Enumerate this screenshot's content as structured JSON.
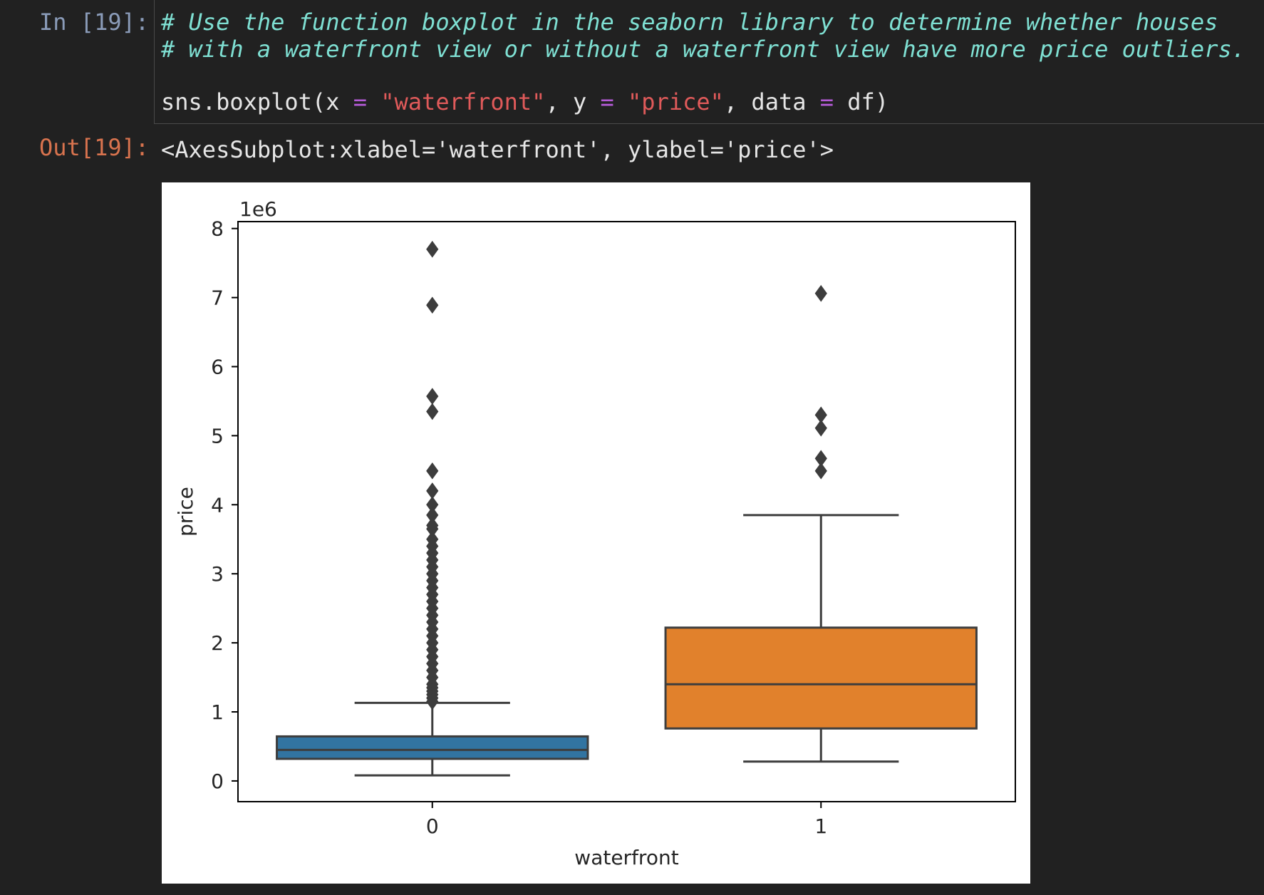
{
  "notebook": {
    "input_prompt": "In [19]:",
    "output_prompt": "Out[19]:",
    "code": {
      "comment_line_1": "# Use the function boxplot in the seaborn library to determine whether houses",
      "comment_line_2": "# with a waterfront view or without a waterfront view have more price outliers.",
      "call_tokens": [
        {
          "text": "sns.boxplot(x ",
          "kind": "plain"
        },
        {
          "text": "=",
          "kind": "op"
        },
        {
          "text": " ",
          "kind": "plain"
        },
        {
          "text": "\"waterfront\"",
          "kind": "str"
        },
        {
          "text": ", y ",
          "kind": "plain"
        },
        {
          "text": "=",
          "kind": "op"
        },
        {
          "text": " ",
          "kind": "plain"
        },
        {
          "text": "\"price\"",
          "kind": "str"
        },
        {
          "text": ", data ",
          "kind": "plain"
        },
        {
          "text": "=",
          "kind": "op"
        },
        {
          "text": " df)",
          "kind": "plain"
        }
      ]
    },
    "output_text": "<AxesSubplot:xlabel='waterfront', ylabel='price'>"
  },
  "colors": {
    "background": "#212121",
    "comment": "#7fe0d3",
    "operator": "#b55bd8",
    "string": "#e05a5a",
    "input_prompt": "#8a9bb8",
    "output_prompt": "#d8734e"
  },
  "chart_data": {
    "type": "boxplot",
    "xlabel": "waterfront",
    "ylabel": "price",
    "offset_label": "1e6",
    "ylim": [
      -0.3,
      8.1
    ],
    "yticks": [
      0,
      1,
      2,
      3,
      4,
      5,
      6,
      7,
      8
    ],
    "categories": [
      "0",
      "1"
    ],
    "boxes": [
      {
        "category": "0",
        "color": "#3274a1",
        "whisker_low": 0.08,
        "q1": 0.32,
        "median": 0.45,
        "q3": 0.645,
        "whisker_high": 1.13,
        "outliers": [
          7.7,
          6.89,
          5.57,
          5.35,
          4.49,
          4.2,
          4.0,
          3.85,
          3.7,
          3.65,
          3.5,
          3.4,
          3.3,
          3.2,
          3.1,
          3.0,
          2.9,
          2.8,
          2.7,
          2.6,
          2.5,
          2.4,
          2.3,
          2.2,
          2.1,
          2.0,
          1.9,
          1.8,
          1.7,
          1.6,
          1.5,
          1.4,
          1.35,
          1.3,
          1.25,
          1.2,
          1.15
        ]
      },
      {
        "category": "1",
        "color": "#e1812c",
        "whisker_low": 0.28,
        "q1": 0.76,
        "median": 1.4,
        "q3": 2.22,
        "whisker_high": 3.85,
        "outliers": [
          7.06,
          5.3,
          5.11,
          4.67,
          4.49
        ]
      }
    ],
    "grid": false
  }
}
